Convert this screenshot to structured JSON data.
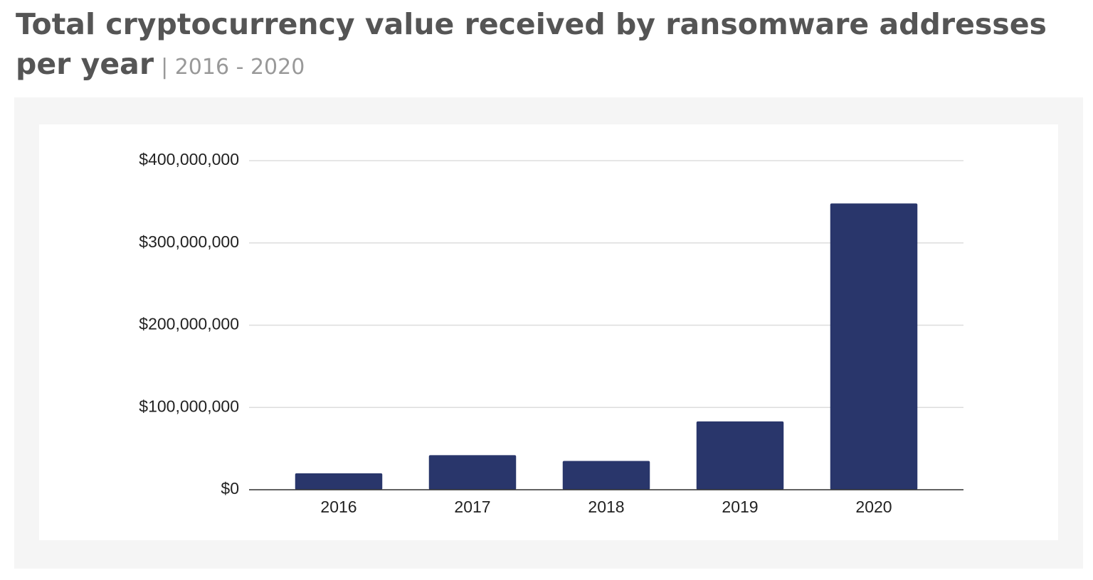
{
  "chart_data": {
    "type": "bar",
    "title": "Total cryptocurrency value received by ransomware addresses per year",
    "subtitle": "| 2016 - 2020",
    "categories": [
      "2016",
      "2017",
      "2018",
      "2019",
      "2020"
    ],
    "values": [
      20000000,
      42000000,
      35000000,
      83000000,
      348000000
    ],
    "color": "#29366b",
    "ylim": [
      0,
      400000000
    ],
    "yticks": [
      {
        "value": 0,
        "label": "$0"
      },
      {
        "value": 100000000,
        "label": "$100,000,000"
      },
      {
        "value": 200000000,
        "label": "$200,000,000"
      },
      {
        "value": 300000000,
        "label": "$300,000,000"
      },
      {
        "value": 400000000,
        "label": "$400,000,000"
      }
    ],
    "grid": true
  }
}
